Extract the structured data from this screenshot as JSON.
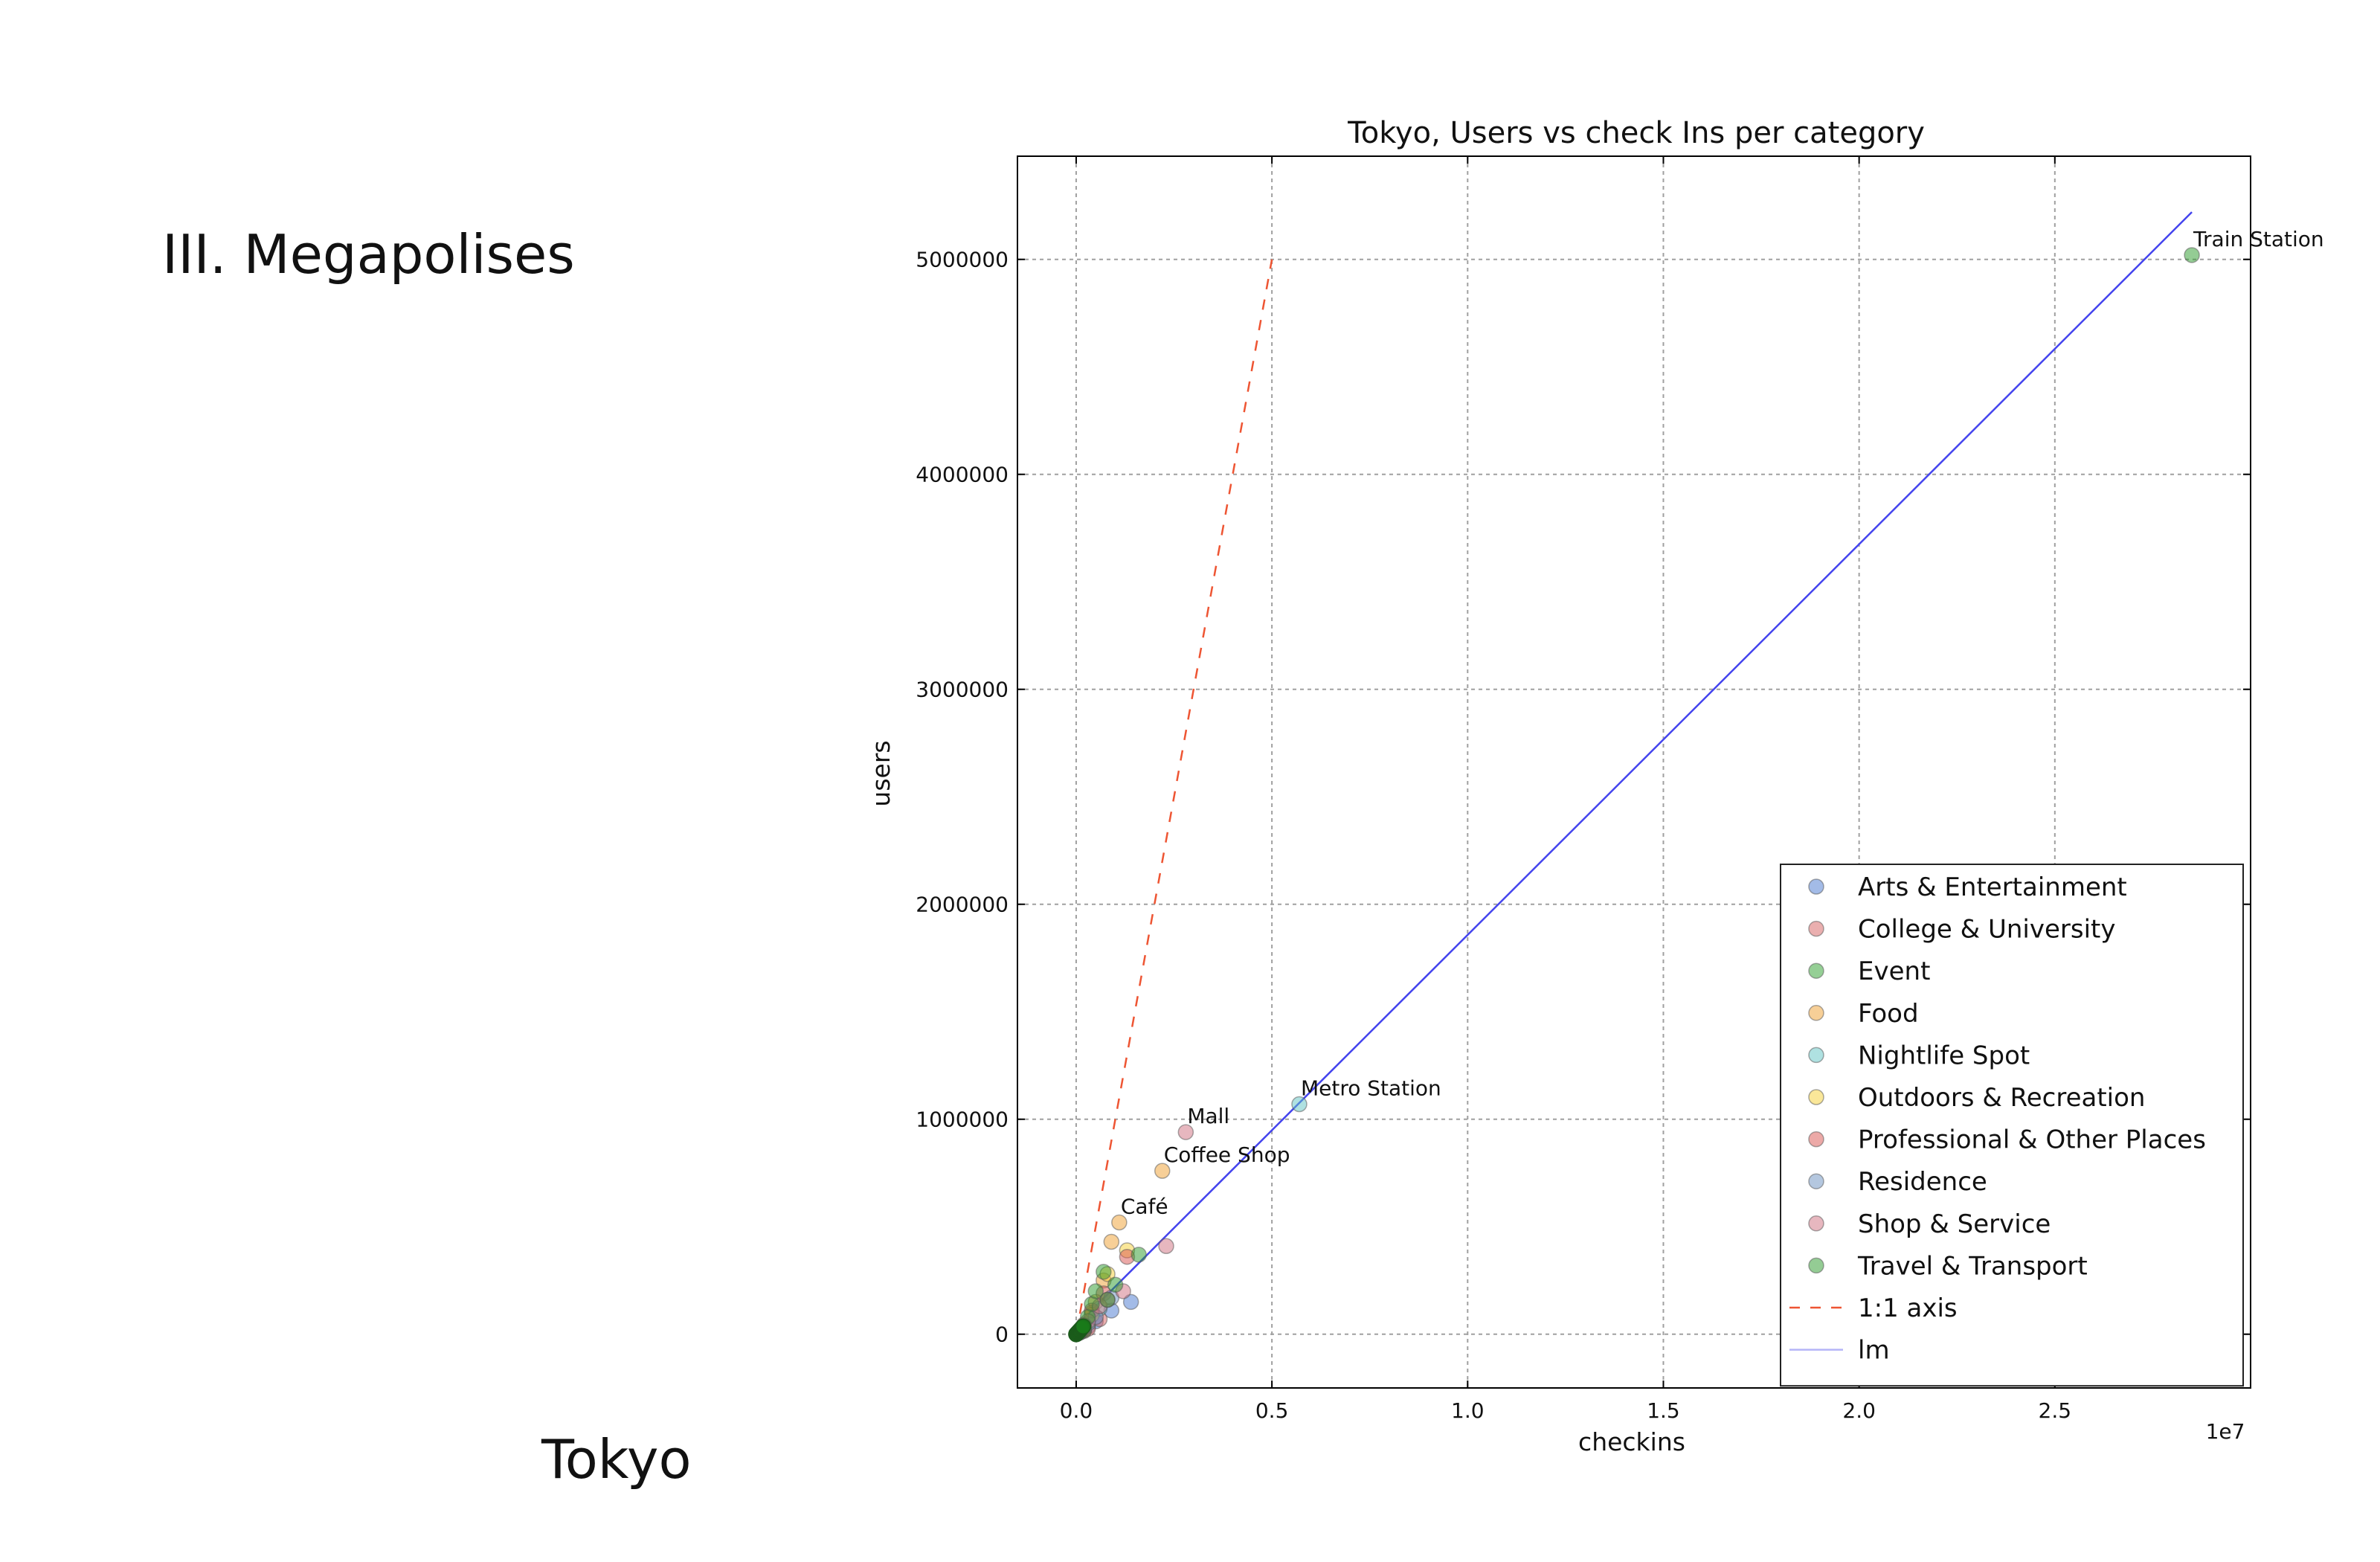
{
  "slide": {
    "heading": "III. Megapolises",
    "caption": "Tokyo"
  },
  "chart_data": {
    "type": "scatter",
    "title": "Tokyo, Users vs check Ins per category",
    "xlabel": "checkins",
    "ylabel": "users",
    "x_offset_label": "1e7",
    "xlim": [
      -0.15,
      3.0
    ],
    "ylim": [
      -250000,
      5480000
    ],
    "x_scale_note": "x values in units of 1e7 checkins",
    "xticks": [
      0.0,
      0.5,
      1.0,
      1.5,
      2.0,
      2.5
    ],
    "xtick_labels": [
      "0.0",
      "0.5",
      "1.0",
      "1.5",
      "2.0",
      "2.5"
    ],
    "yticks": [
      0,
      1000000,
      2000000,
      3000000,
      4000000,
      5000000
    ],
    "ytick_labels": [
      "0",
      "1000000",
      "2000000",
      "3000000",
      "4000000",
      "5000000"
    ],
    "grid": true,
    "legend_position": "lower-right",
    "series": [
      {
        "name": "Arts & Entertainment",
        "color": "#4878cf",
        "points": [
          [
            0.02,
            20000
          ],
          [
            0.05,
            60000
          ],
          [
            0.09,
            110000
          ],
          [
            0.14,
            150000
          ],
          [
            0.03,
            35000
          ],
          [
            0.01,
            8000
          ]
        ]
      },
      {
        "name": "College & University",
        "color": "#d65f5f",
        "points": [
          [
            0.01,
            10000
          ],
          [
            0.03,
            25000
          ],
          [
            0.06,
            70000
          ],
          [
            0.02,
            15000
          ]
        ]
      },
      {
        "name": "Event",
        "color": "#2ca02c",
        "points": [
          [
            0.005,
            4000
          ],
          [
            0.01,
            9000
          ],
          [
            0.02,
            18000
          ]
        ]
      },
      {
        "name": "Food",
        "color": "#f0a030",
        "points": [
          [
            0.11,
            520000
          ],
          [
            0.22,
            760000
          ],
          [
            0.09,
            430000
          ],
          [
            0.05,
            150000
          ],
          [
            0.02,
            40000
          ],
          [
            0.07,
            250000
          ],
          [
            0.04,
            100000
          ]
        ]
      },
      {
        "name": "Nightlife Spot",
        "color": "#5fc4c4",
        "points": [
          [
            0.57,
            1070000
          ],
          [
            0.03,
            50000
          ],
          [
            0.06,
            120000
          ],
          [
            0.01,
            12000
          ]
        ]
      },
      {
        "name": "Outdoors & Recreation",
        "color": "#f5d033",
        "points": [
          [
            0.13,
            390000
          ],
          [
            0.08,
            280000
          ],
          [
            0.04,
            90000
          ],
          [
            0.02,
            30000
          ]
        ]
      },
      {
        "name": "Professional & Other Places",
        "color": "#d9534f",
        "points": [
          [
            0.13,
            360000
          ],
          [
            0.04,
            110000
          ],
          [
            0.07,
            190000
          ],
          [
            0.02,
            45000
          ],
          [
            0.01,
            15000
          ]
        ]
      },
      {
        "name": "Residence",
        "color": "#6a8fbf",
        "points": [
          [
            0.09,
            170000
          ],
          [
            0.05,
            80000
          ],
          [
            0.02,
            30000
          ]
        ]
      },
      {
        "name": "Shop & Service",
        "color": "#d07080",
        "points": [
          [
            0.28,
            940000
          ],
          [
            0.23,
            410000
          ],
          [
            0.12,
            200000
          ],
          [
            0.06,
            130000
          ],
          [
            0.03,
            60000
          ],
          [
            0.015,
            20000
          ],
          [
            0.08,
            160000
          ]
        ]
      },
      {
        "name": "Travel & Transport",
        "color": "#2a9a2a",
        "points": [
          [
            2.85,
            5020000
          ],
          [
            0.16,
            370000
          ],
          [
            0.07,
            290000
          ],
          [
            0.1,
            230000
          ],
          [
            0.08,
            160000
          ],
          [
            0.04,
            140000
          ],
          [
            0.05,
            200000
          ],
          [
            0.03,
            80000
          ],
          [
            0.02,
            40000
          ],
          [
            0.01,
            15000
          ],
          [
            0.005,
            5000
          ],
          [
            0.0,
            0
          ]
        ]
      }
    ],
    "annotations": [
      {
        "text": "Train Station",
        "x": 2.85,
        "y": 5020000
      },
      {
        "text": "Metro Station",
        "x": 0.57,
        "y": 1070000
      },
      {
        "text": "Mall",
        "x": 0.28,
        "y": 940000
      },
      {
        "text": "Coffee Shop",
        "x": 0.22,
        "y": 760000
      },
      {
        "text": "Café",
        "x": 0.11,
        "y": 520000
      }
    ],
    "lines": [
      {
        "name": "1:1 axis",
        "style": "dashed",
        "color": "#ee5533",
        "x": [
          0.0,
          0.5
        ],
        "y": [
          0,
          5000000
        ]
      },
      {
        "name": "lm",
        "style": "solid",
        "color": "#4444ee",
        "x": [
          0.0,
          2.85
        ],
        "y": [
          40000,
          5220000
        ]
      }
    ],
    "legend": [
      "Arts & Entertainment",
      "College & University",
      "Event",
      "Food",
      "Nightlife Spot",
      "Outdoors & Recreation",
      "Professional & Other Places",
      "Residence",
      "Shop & Service",
      "Travel & Transport",
      "1:1 axis",
      "lm"
    ]
  }
}
